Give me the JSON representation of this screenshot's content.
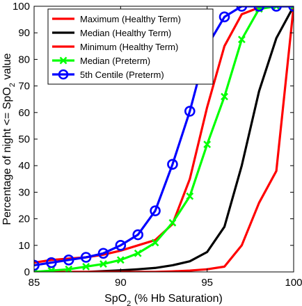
{
  "chart_data": {
    "type": "line",
    "title": "",
    "xlabel": "SpO",
    "xlabel_sub": "2",
    "xlabel_suffix": " (% Hb Saturation)",
    "ylabel": "Percentage of night <= SpO",
    "ylabel_sub": "2",
    "ylabel_suffix": " value",
    "xlim": [
      85,
      100
    ],
    "ylim": [
      0,
      100
    ],
    "xticks": [
      85,
      90,
      95,
      100
    ],
    "yticks": [
      0,
      10,
      20,
      30,
      40,
      50,
      60,
      70,
      80,
      90,
      100
    ],
    "grid": false,
    "legend_position": "top-left",
    "series": [
      {
        "name": "Maximum (Healthy Term)",
        "color": "#ff0000",
        "marker": "none",
        "x": [
          85,
          86,
          87,
          88,
          89,
          90,
          91,
          92,
          93,
          94,
          95,
          96,
          97,
          98,
          99,
          100
        ],
        "y": [
          3.5,
          4.5,
          5,
          5.5,
          6.5,
          8,
          10,
          12,
          18,
          35,
          62,
          85,
          97,
          99.5,
          100,
          100
        ]
      },
      {
        "name": "Median (Healthy Term)",
        "color": "#000000",
        "marker": "none",
        "x": [
          85,
          86,
          87,
          88,
          89,
          90,
          91,
          92,
          93,
          94,
          95,
          96,
          97,
          98,
          99,
          100
        ],
        "y": [
          0,
          0,
          0,
          0,
          0.3,
          0.6,
          1,
          1.5,
          2.5,
          4,
          7.5,
          17,
          40,
          68,
          88,
          100
        ]
      },
      {
        "name": "Minimum (Healthy Term)",
        "color": "#ff0000",
        "marker": "none",
        "x": [
          85,
          86,
          87,
          88,
          89,
          90,
          91,
          92,
          93,
          94,
          95,
          96,
          97,
          98,
          99,
          100
        ],
        "y": [
          0,
          0,
          0,
          0,
          0,
          0,
          0,
          0,
          0.2,
          0.5,
          1,
          2,
          10,
          26,
          38,
          100
        ]
      },
      {
        "name": "Median (Preterm)",
        "color": "#00ff00",
        "marker": "x",
        "x": [
          85,
          86,
          87,
          88,
          89,
          90,
          91,
          92,
          93,
          94,
          95,
          96,
          97,
          98,
          99,
          100
        ],
        "y": [
          0,
          0.5,
          1,
          2,
          3,
          4.5,
          7,
          11,
          18.5,
          28.5,
          48,
          66,
          87.5,
          99,
          100,
          100
        ]
      },
      {
        "name": "5th Centile (Preterm)",
        "color": "#0000ff",
        "marker": "o",
        "x": [
          85,
          86,
          87,
          88,
          89,
          90,
          91,
          92,
          93,
          94,
          95,
          96,
          97,
          98,
          99,
          100
        ],
        "y": [
          2.5,
          3.5,
          4.5,
          5.5,
          7,
          10,
          14,
          23,
          40.5,
          60.5,
          85,
          96,
          100,
          100,
          100,
          100
        ]
      }
    ]
  }
}
